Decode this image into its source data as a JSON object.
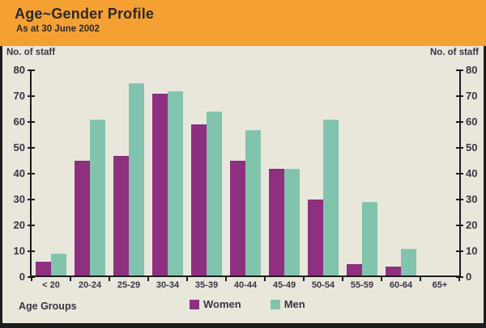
{
  "header": {
    "title": "Age~Gender Profile",
    "subtitle": "As at 30 June 2002",
    "bg_color": "#F4A033",
    "text_color": "#2C2A25"
  },
  "panel": {
    "bg_color": "#E9E7DC",
    "border_color": "#1C1C1C"
  },
  "chart_data": {
    "type": "bar",
    "title": "Age~Gender Profile",
    "subtitle": "As at 30 June 2002",
    "categories": [
      "< 20",
      "20-24",
      "25-29",
      "30-34",
      "35-39",
      "40-44",
      "45-49",
      "50-54",
      "55-59",
      "60-64",
      "65+"
    ],
    "series": [
      {
        "name": "Women",
        "color": "#8E2F80",
        "edge_color": "#7A2570",
        "values": [
          5,
          44,
          46,
          70,
          58,
          44,
          41,
          29,
          4,
          3,
          0
        ]
      },
      {
        "name": "Men",
        "color": "#82C3AE",
        "edge_color": "#9AD2BF",
        "values": [
          8,
          60,
          74,
          71,
          63,
          56,
          41,
          60,
          28,
          10,
          0
        ]
      }
    ],
    "xlabel": "Age Groups",
    "ylabel_left": "No. of staff",
    "ylabel_right": "No. of staff",
    "ylim": [
      0,
      80
    ],
    "yticks": [
      0,
      10,
      20,
      30,
      40,
      50,
      60,
      70,
      80
    ],
    "grid": false,
    "legend_position": "bottom-center",
    "axis_color": "#1C1C1C",
    "tick_label_color": "#3A3442"
  }
}
